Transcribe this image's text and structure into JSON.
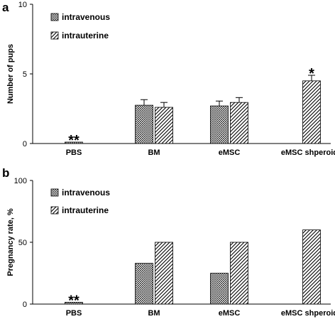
{
  "panels": [
    {
      "letter": "a",
      "legend": [
        "intravenous",
        "intrauterine"
      ]
    },
    {
      "letter": "b",
      "legend": [
        "intravenous",
        "intrauterine"
      ]
    }
  ],
  "colors": {
    "ink": "#000000",
    "bar_fill": "#ffffff"
  },
  "chart_data": [
    {
      "type": "bar",
      "title": "",
      "xlabel": "",
      "ylabel": "Number of pups",
      "ylim": [
        0,
        10
      ],
      "yticks": [
        "0",
        "5",
        "10"
      ],
      "categories": [
        "PBS",
        "BM",
        "eMSC",
        "eMSC shperoids"
      ],
      "series": [
        {
          "name": "intravenous",
          "pattern": "cross-hatch",
          "values": [
            0.05,
            2.75,
            2.7,
            null
          ],
          "errors": [
            0,
            0.4,
            0.35,
            null
          ]
        },
        {
          "name": "intrauterine",
          "pattern": "diagonal-hatch",
          "values": [
            null,
            2.6,
            2.95,
            4.5
          ],
          "errors": [
            null,
            0.35,
            0.35,
            0.4
          ]
        }
      ],
      "annotations": [
        {
          "category": "PBS",
          "series": "intravenous",
          "text": "**"
        },
        {
          "category": "eMSC shperoids",
          "series": "intrauterine",
          "text": "*"
        }
      ],
      "grid": false,
      "legend_position": "top-left"
    },
    {
      "type": "bar",
      "title": "",
      "xlabel": "",
      "ylabel": "Pregnancy rate, %",
      "ylim": [
        0,
        100
      ],
      "yticks": [
        "0",
        "50",
        "100"
      ],
      "categories": [
        "PBS",
        "BM",
        "eMSC",
        "eMSC shperoids"
      ],
      "series": [
        {
          "name": "intravenous",
          "pattern": "cross-hatch",
          "values": [
            1.5,
            33,
            25,
            null
          ]
        },
        {
          "name": "intrauterine",
          "pattern": "diagonal-hatch",
          "values": [
            null,
            50,
            50,
            60
          ]
        }
      ],
      "annotations": [
        {
          "category": "PBS",
          "series": "intravenous",
          "text": "**"
        }
      ],
      "grid": false,
      "legend_position": "top-left"
    }
  ]
}
